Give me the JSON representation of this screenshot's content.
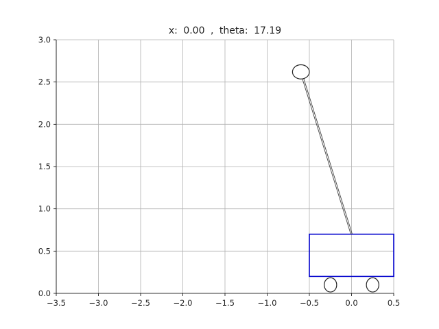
{
  "title": {
    "x_label": "x:",
    "x_value": "0.00",
    "separator": ",",
    "theta_label": "theta:",
    "theta_value": "17.19"
  },
  "chart_data": {
    "type": "scatter",
    "xlim": [
      -3.5,
      0.5
    ],
    "ylim": [
      0.0,
      3.0
    ],
    "grid": true,
    "x_ticks": [
      "-3.5",
      "-3.0",
      "-2.5",
      "-2.0",
      "-1.5",
      "-1.0",
      "-0.5",
      "0.0",
      "0.5"
    ],
    "y_ticks": [
      "0.0",
      "0.5",
      "1.0",
      "1.5",
      "2.0",
      "2.5",
      "3.0"
    ],
    "cart": {
      "x_range": [
        -0.5,
        0.5
      ],
      "y_range": [
        0.2,
        0.7
      ],
      "color": "#0000cc"
    },
    "wheels": [
      {
        "x": -0.25,
        "y": 0.1,
        "r": 0.08
      },
      {
        "x": 0.25,
        "y": 0.1,
        "r": 0.08
      }
    ],
    "pole": {
      "pivot": {
        "x": 0.0,
        "y": 0.7
      },
      "tip": {
        "x": -0.6,
        "y": 2.62
      }
    },
    "bob": {
      "x": -0.6,
      "y": 2.62,
      "r": 0.08
    },
    "colors": {
      "grid": "#b0b0b0",
      "axes": "#000000",
      "pole": "#444444",
      "outline": "#222222"
    }
  }
}
